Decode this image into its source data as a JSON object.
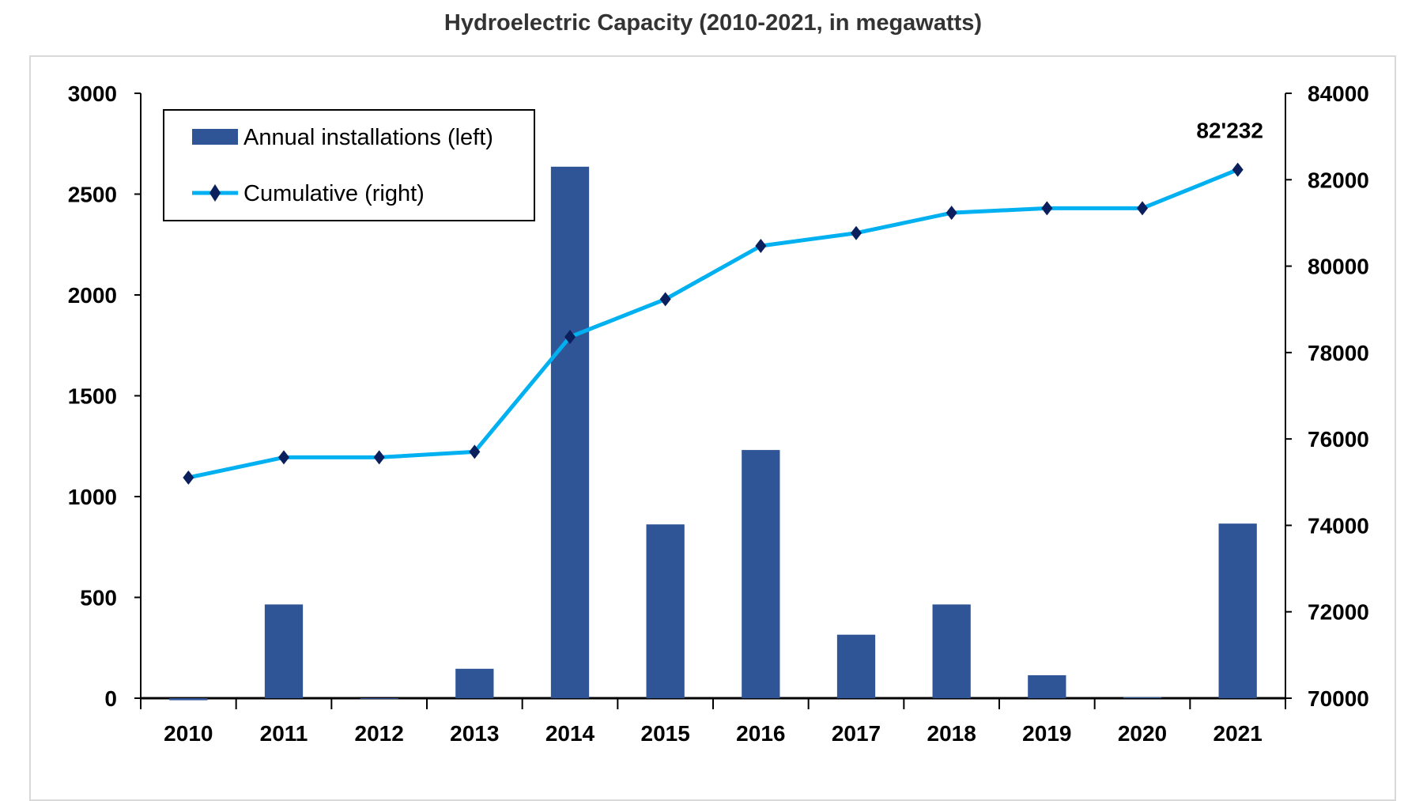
{
  "chart_data": {
    "type": "bar+line",
    "title": "Hydroelectric Capacity (2010-2021, in megawatts)",
    "categories": [
      "2010",
      "2011",
      "2012",
      "2013",
      "2014",
      "2015",
      "2016",
      "2017",
      "2018",
      "2019",
      "2020",
      "2021"
    ],
    "series": [
      {
        "name": "Annual installations (left)",
        "type": "bar",
        "axis": "left",
        "color": "#2F5597",
        "values": [
          -10,
          465,
          0,
          146,
          2636,
          862,
          1231,
          315,
          465,
          114,
          5,
          866
        ]
      },
      {
        "name": "Cumulative (right)",
        "type": "line",
        "axis": "right",
        "color": "#00B0F0",
        "marker_color": "#0B1F5C",
        "values": [
          75106,
          75574,
          75574,
          75702,
          78362,
          79234,
          80468,
          80766,
          81234,
          81340,
          81340,
          82232
        ]
      }
    ],
    "left_axis": {
      "range": [
        0,
        3000
      ],
      "ticks": [
        "0",
        "500",
        "1000",
        "1500",
        "2000",
        "2500",
        "3000"
      ]
    },
    "right_axis": {
      "range": [
        70000,
        84000
      ],
      "ticks": [
        "70000",
        "72000",
        "74000",
        "76000",
        "78000",
        "80000",
        "82000",
        "84000"
      ]
    },
    "annotation": "82'232",
    "legend": "top-left",
    "grid": false
  }
}
